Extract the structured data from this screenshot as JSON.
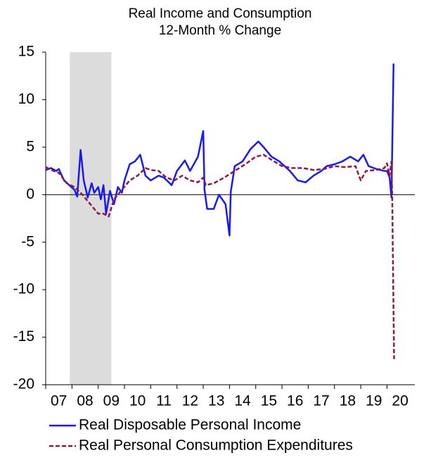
{
  "chart_data": {
    "type": "line",
    "title": "Real Income and Consumption",
    "subtitle": "12-Month % Change",
    "xlim": [
      2007,
      2021.06
    ],
    "xticks": [
      {
        "value": 2007,
        "label": "07"
      },
      {
        "value": 2008,
        "label": "08"
      },
      {
        "value": 2009,
        "label": "09"
      },
      {
        "value": 2010,
        "label": "10"
      },
      {
        "value": 2011,
        "label": "11"
      },
      {
        "value": 2012,
        "label": "12"
      },
      {
        "value": 2013,
        "label": "13"
      },
      {
        "value": 2014,
        "label": "14"
      },
      {
        "value": 2015,
        "label": "15"
      },
      {
        "value": 2016,
        "label": "16"
      },
      {
        "value": 2017,
        "label": "17"
      },
      {
        "value": 2018,
        "label": "18"
      },
      {
        "value": 2019,
        "label": "19"
      },
      {
        "value": 2020,
        "label": "20"
      }
    ],
    "ylim": [
      -20,
      15
    ],
    "yticks": [
      -20,
      -15,
      -10,
      -5,
      0,
      5,
      10,
      15
    ],
    "shaded_regions": [
      [
        2007.92,
        2009.5
      ]
    ],
    "shade_color": "#dcdcdc",
    "grid": false,
    "legend": "bottom",
    "series": [
      {
        "name": "Real Disposable Personal Income",
        "color": "#1a1aee",
        "dash": false,
        "x": [
          2007.0,
          2007.2,
          2007.4,
          2007.5,
          2007.7,
          2007.9,
          2008.1,
          2008.2,
          2008.33,
          2008.45,
          2008.6,
          2008.75,
          2008.85,
          2009.0,
          2009.1,
          2009.2,
          2009.3,
          2009.45,
          2009.6,
          2009.75,
          2009.9,
          2010.0,
          2010.2,
          2010.4,
          2010.6,
          2010.8,
          2011.0,
          2011.3,
          2011.5,
          2011.8,
          2012.0,
          2012.3,
          2012.5,
          2012.8,
          2013.0,
          2013.05,
          2013.15,
          2013.4,
          2013.6,
          2013.85,
          2014.0,
          2014.05,
          2014.2,
          2014.5,
          2014.8,
          2015.1,
          2015.3,
          2015.6,
          2015.9,
          2016.3,
          2016.6,
          2016.9,
          2017.2,
          2017.5,
          2017.7,
          2018.0,
          2018.3,
          2018.6,
          2018.9,
          2019.1,
          2019.3,
          2019.6,
          2019.9,
          2020.0,
          2020.1,
          2020.17,
          2020.25
        ],
        "values": [
          2.6,
          2.8,
          2.5,
          2.7,
          1.5,
          1.0,
          0.5,
          -0.2,
          4.7,
          1.5,
          -0.3,
          1.2,
          0.2,
          0.8,
          -0.5,
          1.0,
          -2.0,
          0.4,
          -1.0,
          0.8,
          0.2,
          1.5,
          3.2,
          3.5,
          4.2,
          2.0,
          1.5,
          2.0,
          1.8,
          1.0,
          2.5,
          3.6,
          2.5,
          4.0,
          6.7,
          0.5,
          -1.5,
          -1.5,
          0.0,
          -1.0,
          -4.3,
          0.3,
          3.0,
          3.5,
          4.8,
          5.6,
          5.0,
          4.0,
          3.5,
          2.5,
          1.5,
          1.3,
          2.0,
          2.5,
          3.0,
          3.2,
          3.5,
          4.0,
          3.5,
          4.2,
          3.0,
          2.7,
          2.5,
          2.5,
          1.8,
          -0.3,
          13.8
        ]
      },
      {
        "name": "Real Personal Consumption Expenditures",
        "color": "#8b1a4a",
        "dash": true,
        "x": [
          2007.0,
          2007.3,
          2007.5,
          2007.8,
          2008.1,
          2008.4,
          2008.7,
          2009.0,
          2009.2,
          2009.4,
          2009.6,
          2009.9,
          2010.2,
          2010.5,
          2010.8,
          2011.0,
          2011.3,
          2011.6,
          2011.9,
          2012.2,
          2012.5,
          2012.8,
          2013.0,
          2013.1,
          2013.4,
          2013.8,
          2014.2,
          2014.6,
          2015.0,
          2015.3,
          2015.7,
          2016.0,
          2016.4,
          2016.8,
          2017.2,
          2017.6,
          2018.0,
          2018.4,
          2018.8,
          2019.0,
          2019.2,
          2019.6,
          2019.9,
          2020.0,
          2020.1,
          2020.17,
          2020.2,
          2020.27
        ],
        "values": [
          2.9,
          2.5,
          2.3,
          1.2,
          0.8,
          0.0,
          -1.0,
          -2.0,
          -2.0,
          -2.3,
          -0.5,
          0.5,
          1.5,
          2.0,
          2.8,
          2.6,
          2.5,
          1.8,
          1.5,
          2.0,
          1.5,
          1.3,
          1.8,
          1.0,
          1.2,
          1.8,
          2.5,
          3.2,
          4.0,
          4.2,
          3.5,
          3.0,
          2.8,
          2.8,
          2.6,
          2.7,
          3.0,
          2.9,
          3.0,
          1.5,
          2.5,
          2.6,
          2.8,
          3.3,
          2.0,
          3.5,
          -0.5,
          -17.3
        ]
      }
    ]
  }
}
